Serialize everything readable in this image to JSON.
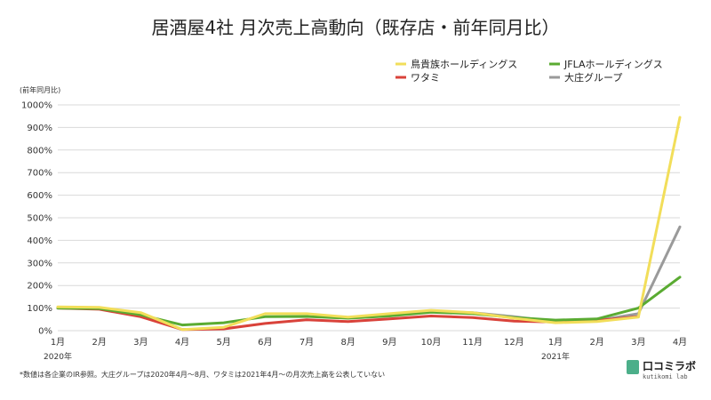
{
  "title": "居酒屋4社 月次売上高動向（既存店・前年同月比）",
  "unit_label": "(前年同月比)",
  "footnote": "*数値は各企業のIR参照。大庄グループは2020年4月〜8月、ワタミは2021年4月〜の月次売上高を公表していない",
  "logo": {
    "name": "口コミラボ",
    "sub": "kutikomi lab",
    "color": "#4caf8a"
  },
  "chart_data": {
    "type": "line",
    "title": "居酒屋4社 月次売上高動向（既存店・前年同月比）",
    "ylabel": "(前年同月比)",
    "xlabel": "",
    "ylim": [
      0,
      1000
    ],
    "yticks": [
      "0%",
      "100%",
      "200%",
      "300%",
      "400%",
      "500%",
      "600%",
      "700%",
      "800%",
      "900%",
      "1000%"
    ],
    "categories": [
      "1月",
      "2月",
      "3月",
      "4月",
      "5月",
      "6月",
      "7月",
      "8月",
      "9月",
      "10月",
      "11月",
      "12月",
      "1月",
      "2月",
      "3月",
      "4月"
    ],
    "year_labels": [
      {
        "index": 0,
        "text": "2020年"
      },
      {
        "index": 12,
        "text": "2021年"
      }
    ],
    "grid": true,
    "legend_position": "top-right",
    "series": [
      {
        "name": "鳥貴族ホールディングス",
        "color": "#f2de5a",
        "values": [
          105,
          103,
          80,
          5,
          15,
          75,
          75,
          60,
          75,
          90,
          80,
          55,
          35,
          40,
          60,
          945
        ]
      },
      {
        "name": "JFLAホールディングス",
        "color": "#5aab32",
        "values": [
          100,
          98,
          70,
          25,
          35,
          62,
          63,
          55,
          65,
          82,
          75,
          58,
          47,
          52,
          100,
          237
        ]
      },
      {
        "name": "ワタミ",
        "color": "#d9423a",
        "values": [
          100,
          95,
          62,
          5,
          8,
          32,
          48,
          40,
          52,
          65,
          58,
          42,
          38,
          45,
          62,
          null
        ]
      },
      {
        "name": "大庄グループ",
        "color": "#9a9a9a",
        "values": [
          null,
          null,
          null,
          null,
          null,
          null,
          null,
          null,
          70,
          85,
          80,
          62,
          40,
          45,
          75,
          460
        ]
      }
    ]
  }
}
